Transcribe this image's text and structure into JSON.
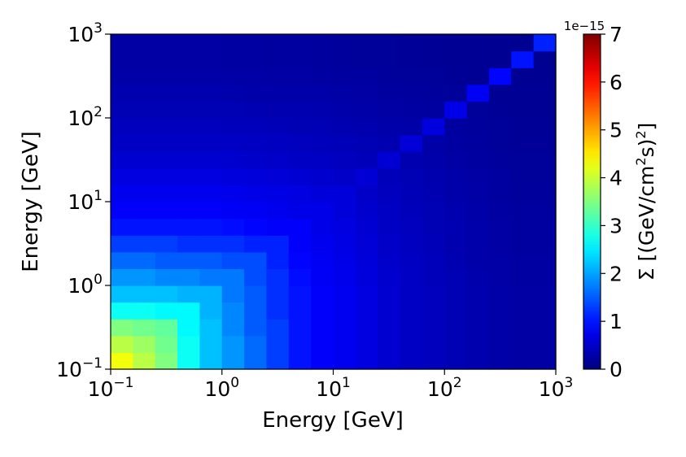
{
  "chart_data": {
    "type": "heatmap",
    "title": "",
    "xlabel": "Energy [GeV]",
    "ylabel": "Energy [GeV]",
    "x_scale": "log",
    "y_scale": "log",
    "xlim": [
      0.1,
      1000
    ],
    "ylim": [
      0.1,
      1000
    ],
    "x_ticks": [
      {
        "base": "10",
        "exp": "−1",
        "value": 0.1
      },
      {
        "base": "10",
        "exp": "0",
        "value": 1
      },
      {
        "base": "10",
        "exp": "1",
        "value": 10
      },
      {
        "base": "10",
        "exp": "2",
        "value": 100
      },
      {
        "base": "10",
        "exp": "3",
        "value": 1000
      }
    ],
    "y_ticks": [
      {
        "base": "10",
        "exp": "−1",
        "value": 0.1
      },
      {
        "base": "10",
        "exp": "0",
        "value": 1
      },
      {
        "base": "10",
        "exp": "1",
        "value": 10
      },
      {
        "base": "10",
        "exp": "2",
        "value": 100
      },
      {
        "base": "10",
        "exp": "3",
        "value": 1000
      }
    ],
    "grid": false,
    "bins_per_axis": 20,
    "bin_edges_log10": [
      -1,
      0
    ],
    "colorbar": {
      "label_prefix": "Σ [(GeV/cm",
      "label_sup1": "2",
      "label_mid": "s)",
      "label_sup2": "2",
      "label_suffix": "]",
      "offset_text": "1e−15",
      "vmin": 0,
      "vmax": 7,
      "ticks": [
        "0",
        "1",
        "2",
        "3",
        "4",
        "5",
        "6",
        "7"
      ],
      "colormap": "jet"
    },
    "values_unit_note": "",
    "values": [
      [
        4.3,
        3.9,
        3.5,
        2.7,
        2.2,
        1.9,
        1.6,
        1.3,
        1.0,
        0.85,
        0.78,
        0.66,
        0.55,
        0.48,
        0.42,
        0.37,
        0.32,
        0.28,
        0.25,
        0.25
      ],
      [
        3.9,
        3.7,
        3.4,
        2.7,
        2.2,
        1.9,
        1.6,
        1.3,
        1.0,
        0.85,
        0.78,
        0.66,
        0.55,
        0.48,
        0.42,
        0.37,
        0.32,
        0.28,
        0.25,
        0.25
      ],
      [
        3.5,
        3.4,
        3.3,
        2.6,
        2.2,
        1.8,
        1.5,
        1.3,
        1.0,
        0.85,
        0.78,
        0.66,
        0.55,
        0.48,
        0.42,
        0.37,
        0.32,
        0.28,
        0.25,
        0.25
      ],
      [
        2.7,
        2.7,
        2.6,
        2.6,
        2.1,
        1.8,
        1.5,
        1.2,
        1.0,
        0.85,
        0.78,
        0.66,
        0.55,
        0.48,
        0.42,
        0.37,
        0.32,
        0.28,
        0.25,
        0.25
      ],
      [
        2.2,
        2.2,
        2.2,
        2.1,
        2.1,
        1.7,
        1.5,
        1.2,
        1.0,
        0.85,
        0.78,
        0.66,
        0.55,
        0.48,
        0.42,
        0.37,
        0.32,
        0.28,
        0.25,
        0.25
      ],
      [
        1.9,
        1.9,
        1.8,
        1.8,
        1.7,
        1.7,
        1.4,
        1.2,
        0.95,
        0.82,
        0.75,
        0.64,
        0.54,
        0.47,
        0.41,
        0.36,
        0.31,
        0.27,
        0.24,
        0.24
      ],
      [
        1.6,
        1.6,
        1.5,
        1.5,
        1.5,
        1.4,
        1.4,
        1.1,
        0.9,
        0.8,
        0.72,
        0.62,
        0.52,
        0.46,
        0.4,
        0.35,
        0.3,
        0.27,
        0.24,
        0.24
      ],
      [
        1.3,
        1.3,
        1.3,
        1.2,
        1.2,
        1.2,
        1.1,
        1.1,
        0.85,
        0.76,
        0.7,
        0.6,
        0.5,
        0.45,
        0.39,
        0.34,
        0.3,
        0.26,
        0.23,
        0.23
      ],
      [
        1.0,
        1.0,
        1.0,
        1.0,
        1.0,
        0.95,
        0.9,
        0.85,
        0.85,
        0.72,
        0.66,
        0.57,
        0.48,
        0.43,
        0.37,
        0.33,
        0.29,
        0.25,
        0.22,
        0.22
      ],
      [
        0.85,
        0.85,
        0.85,
        0.85,
        0.85,
        0.82,
        0.8,
        0.76,
        0.72,
        0.72,
        0.62,
        0.54,
        0.46,
        0.41,
        0.36,
        0.32,
        0.28,
        0.24,
        0.21,
        0.21
      ],
      [
        0.78,
        0.78,
        0.78,
        0.78,
        0.78,
        0.75,
        0.72,
        0.7,
        0.66,
        0.62,
        0.62,
        0.5,
        0.43,
        0.39,
        0.34,
        0.3,
        0.27,
        0.23,
        0.2,
        0.2
      ],
      [
        0.66,
        0.66,
        0.66,
        0.66,
        0.66,
        0.64,
        0.62,
        0.6,
        0.57,
        0.54,
        0.5,
        0.58,
        0.4,
        0.36,
        0.32,
        0.28,
        0.25,
        0.22,
        0.19,
        0.19
      ],
      [
        0.55,
        0.55,
        0.55,
        0.55,
        0.55,
        0.54,
        0.52,
        0.5,
        0.48,
        0.46,
        0.43,
        0.4,
        0.58,
        0.33,
        0.3,
        0.26,
        0.23,
        0.2,
        0.18,
        0.18
      ],
      [
        0.48,
        0.48,
        0.48,
        0.48,
        0.48,
        0.47,
        0.46,
        0.45,
        0.43,
        0.41,
        0.39,
        0.36,
        0.33,
        0.6,
        0.28,
        0.24,
        0.21,
        0.19,
        0.17,
        0.17
      ],
      [
        0.42,
        0.42,
        0.42,
        0.42,
        0.42,
        0.41,
        0.4,
        0.39,
        0.37,
        0.36,
        0.34,
        0.32,
        0.3,
        0.28,
        0.65,
        0.22,
        0.2,
        0.18,
        0.16,
        0.16
      ],
      [
        0.37,
        0.37,
        0.37,
        0.37,
        0.37,
        0.36,
        0.35,
        0.34,
        0.33,
        0.32,
        0.3,
        0.28,
        0.26,
        0.24,
        0.22,
        0.72,
        0.18,
        0.16,
        0.15,
        0.15
      ],
      [
        0.32,
        0.32,
        0.32,
        0.32,
        0.32,
        0.31,
        0.3,
        0.3,
        0.29,
        0.28,
        0.27,
        0.25,
        0.23,
        0.21,
        0.2,
        0.18,
        0.8,
        0.15,
        0.14,
        0.14
      ],
      [
        0.28,
        0.28,
        0.28,
        0.28,
        0.28,
        0.27,
        0.27,
        0.26,
        0.25,
        0.24,
        0.23,
        0.22,
        0.2,
        0.19,
        0.18,
        0.16,
        0.15,
        0.9,
        0.13,
        0.13
      ],
      [
        0.25,
        0.25,
        0.25,
        0.25,
        0.25,
        0.24,
        0.24,
        0.23,
        0.22,
        0.21,
        0.2,
        0.19,
        0.18,
        0.17,
        0.16,
        0.15,
        0.14,
        0.13,
        1.0,
        0.12
      ],
      [
        0.25,
        0.25,
        0.25,
        0.25,
        0.25,
        0.24,
        0.24,
        0.23,
        0.22,
        0.21,
        0.2,
        0.19,
        0.18,
        0.17,
        0.16,
        0.15,
        0.14,
        0.13,
        0.12,
        1.1
      ]
    ]
  }
}
